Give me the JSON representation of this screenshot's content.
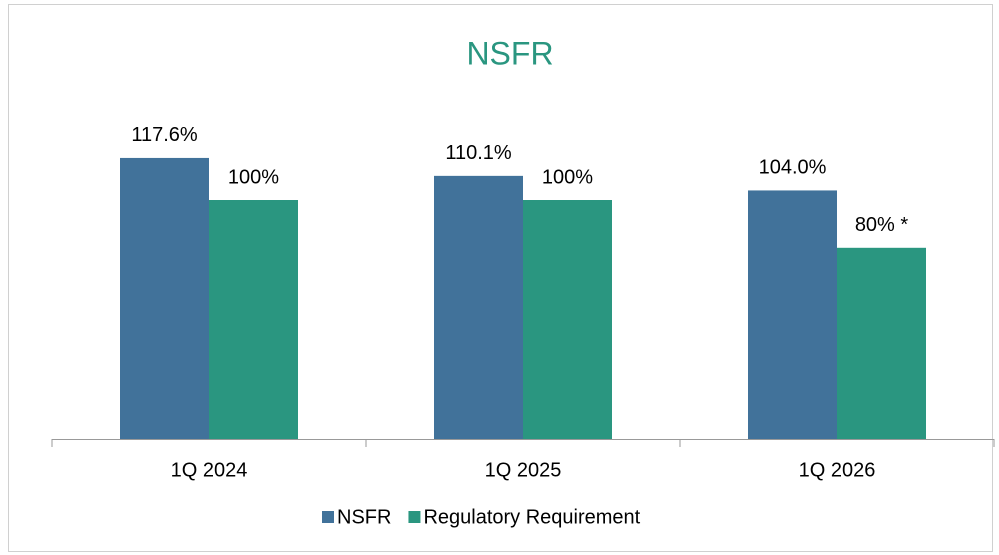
{
  "chart_data": {
    "type": "bar",
    "title": "NSFR",
    "categories": [
      "1Q 2024",
      "1Q 2025",
      "1Q 2026"
    ],
    "series": [
      {
        "name": "NSFR",
        "color": "#41729a",
        "values": [
          117.6,
          110.1,
          104.0
        ],
        "value_labels": [
          "117.6%",
          "110.1%",
          "104.0%"
        ]
      },
      {
        "name": "Regulatory Requirement",
        "color": "#2a9680",
        "values": [
          100,
          100,
          80
        ],
        "value_labels": [
          "100%",
          "100%",
          "80% *"
        ]
      }
    ],
    "ylim": [
      0,
      140
    ]
  }
}
